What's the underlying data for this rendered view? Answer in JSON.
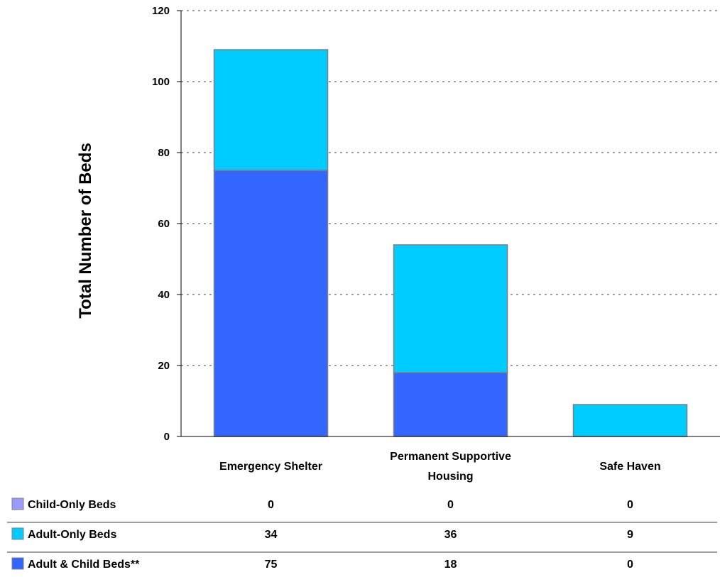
{
  "chart_data": {
    "type": "bar",
    "stacked": true,
    "categories": [
      "Emergency Shelter",
      "Permanent Supportive Housing",
      "Safe Haven"
    ],
    "series": [
      {
        "name": "Child-Only Beds",
        "values": [
          0,
          0,
          0
        ],
        "color": "#9999ff"
      },
      {
        "name": "Adult-Only Beds",
        "values": [
          34,
          36,
          9
        ],
        "color": "#00ccff"
      },
      {
        "name": "Adult & Child Beds**",
        "values": [
          75,
          18,
          0
        ],
        "color": "#3366ff"
      }
    ],
    "ylabel": "Total Number of Beds",
    "xlabel": "",
    "ylim": [
      0,
      120
    ],
    "yticks": [
      0,
      20,
      40,
      60,
      80,
      100,
      120
    ],
    "grid": true,
    "data_table": true
  }
}
